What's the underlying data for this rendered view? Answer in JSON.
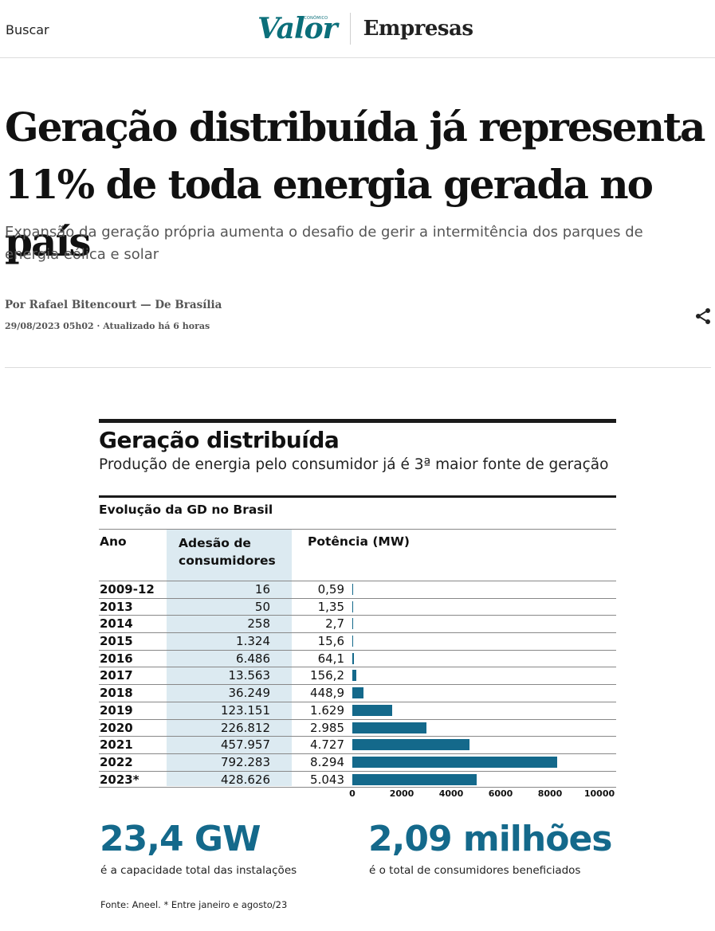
{
  "header": {
    "search_label": "Buscar",
    "logo": "Valor",
    "logo_small": "ECONÔMICO",
    "section": "Empresas"
  },
  "article": {
    "headline": "Geração distribuída já representa 11% de toda energia gerada no país",
    "subhead": "Expansão da geração própria aumenta o desafio de gerir a intermitência dos parques de energia eólica e solar",
    "byline": "Por Rafael Bitencourt — De Brasília",
    "dateline": "29/08/2023 05h02 · Atualizado há 6 horas",
    "share_icon": "share-icon"
  },
  "infographic": {
    "title": "Geração distribuída",
    "subtitle": "Produção de energia pelo consumidor já é 3ª maior fonte de geração",
    "table_title": "Evolução da GD no Brasil",
    "col_ano": "Ano",
    "col_adesao": "Adesão de consumidores",
    "col_potencia": "Potência (MW)",
    "stat1_value": "23,4 GW",
    "stat1_caption": "é a capacidade total das instalações",
    "stat2_value": "2,09 milhões",
    "stat2_caption": "é o total de consumidores beneficiados",
    "source": "Fonte: Aneel. * Entre janeiro e agosto/23",
    "bar_color": "#14698b",
    "column_highlight_color": "#dceaf1"
  },
  "chart_data": {
    "type": "bar",
    "orientation": "horizontal",
    "categories": [
      "2009-12",
      "2013",
      "2014",
      "2015",
      "2016",
      "2017",
      "2018",
      "2019",
      "2020",
      "2021",
      "2022",
      "2023*"
    ],
    "adesao_labels": [
      "16",
      "50",
      "258",
      "1.324",
      "6.486",
      "13.563",
      "36.249",
      "123.151",
      "226.812",
      "457.957",
      "792.283",
      "428.626"
    ],
    "potencia_labels": [
      "0,59",
      "1,35",
      "2,7",
      "15,6",
      "64,1",
      "156,2",
      "448,9",
      "1.629",
      "2.985",
      "4.727",
      "8.294",
      "5.043"
    ],
    "series": [
      {
        "values": [
          0.59,
          1.35,
          2.7,
          15.6,
          64.1,
          156.2,
          448.9,
          1629,
          2985,
          4727,
          8294,
          5043
        ]
      }
    ],
    "xlim": [
      0,
      10000
    ],
    "xticks": [
      "0",
      "2000",
      "4000",
      "6000",
      "8000",
      "10000"
    ]
  }
}
